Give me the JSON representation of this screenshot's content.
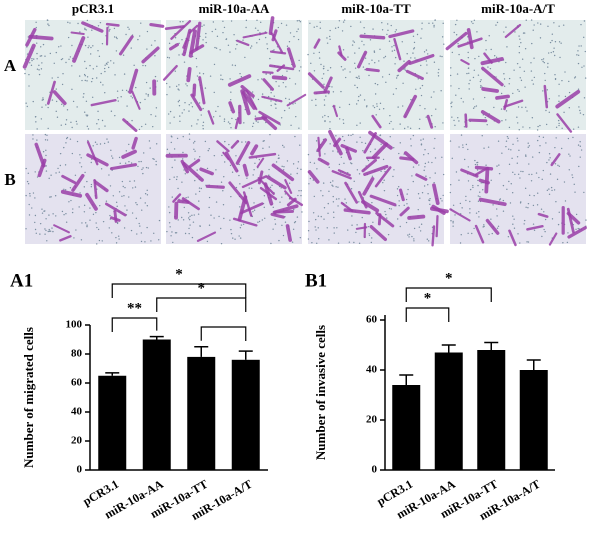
{
  "image_panel": {
    "columns": [
      "pCR3.1",
      "miR-10a-AA",
      "miR-10a-TT",
      "miR-10a-A/T"
    ],
    "rows": [
      "A",
      "B"
    ]
  },
  "chart_data": [
    {
      "type": "bar",
      "panel_label": "A1",
      "ylabel": "Number of migrated cells",
      "categories": [
        "pCR3.1",
        "miR-10a-AA",
        "miR-10a-TT",
        "miR-10a-A/T"
      ],
      "values": [
        65,
        90,
        78,
        76
      ],
      "errors": [
        2,
        2,
        7,
        6
      ],
      "color": "#000000",
      "ylim": [
        0,
        100
      ],
      "yticks": [
        0,
        20,
        40,
        60,
        80,
        100
      ],
      "annotations": [
        {
          "text": "**",
          "from": "pCR3.1",
          "to": "miR-10a-AA"
        },
        {
          "text": "*",
          "from": "pCR3.1",
          "to": "miR-10a-A/T"
        },
        {
          "text": "*",
          "from": "miR-10a-AA",
          "to": "miR-10a-A/T"
        },
        {
          "from": "miR-10a-TT",
          "to": "miR-10a-A/T"
        }
      ]
    },
    {
      "type": "bar",
      "panel_label": "B1",
      "ylabel": "Number of invasive cells",
      "categories": [
        "pCR3.1",
        "miR-10a-AA",
        "miR-10a-TT",
        "miR-10a-A/T"
      ],
      "values": [
        34,
        47,
        48,
        40
      ],
      "errors": [
        4,
        3,
        3,
        4
      ],
      "color": "#000000",
      "ylim": [
        0,
        62
      ],
      "yticks": [
        0,
        20,
        40,
        60
      ],
      "annotations": [
        {
          "text": "*",
          "from": "pCR3.1",
          "to": "miR-10a-AA"
        },
        {
          "text": "*",
          "from": "pCR3.1",
          "to": "miR-10a-TT"
        }
      ]
    }
  ]
}
